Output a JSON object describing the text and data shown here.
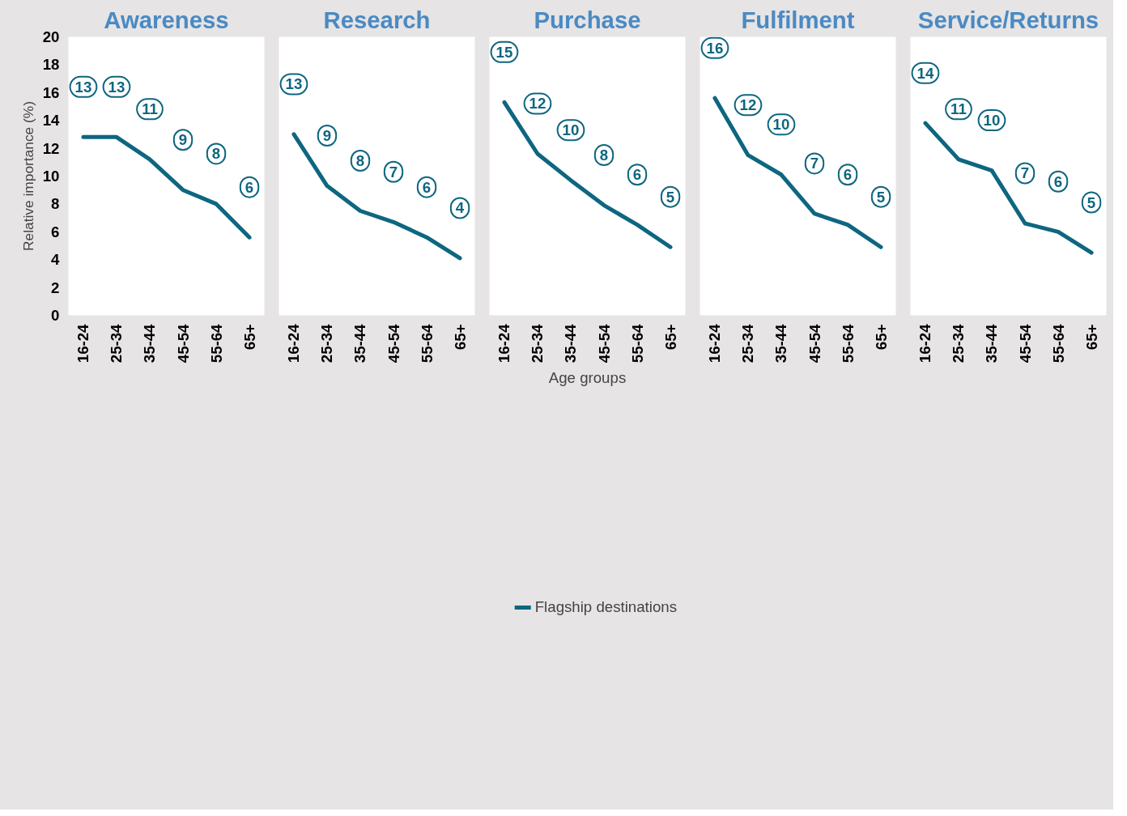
{
  "chart_data": [
    {
      "type": "line",
      "title": "Awareness",
      "ylabel": "Relative importance (%)",
      "categories": [
        "16-24",
        "25-34",
        "35-44",
        "45-54",
        "55-64",
        "65+"
      ],
      "ylim": [
        0,
        20
      ],
      "yticks": [
        0,
        2,
        4,
        6,
        8,
        10,
        12,
        14,
        16,
        18,
        20
      ],
      "series": [
        {
          "color": "#0e6680",
          "values": [
            12.8,
            12.8,
            11.2,
            9.0,
            8.0,
            5.6
          ],
          "value_labels": [
            "13",
            "13",
            "11",
            "9",
            "8",
            "6"
          ]
        }
      ]
    },
    {
      "type": "line",
      "title": "Research",
      "categories": [
        "16-24",
        "25-34",
        "35-44",
        "45-54",
        "55-64",
        "65+"
      ],
      "ylim": [
        0,
        20
      ],
      "yticks": [
        0,
        2,
        4,
        6,
        8,
        10,
        12,
        14,
        16,
        18,
        20
      ],
      "tick_labels": "x",
      "series": [
        {
          "color": "#0e6680",
          "values": [
            13.0,
            9.3,
            7.5,
            6.7,
            5.6,
            4.1
          ],
          "value_labels": [
            "13",
            "9",
            "8",
            "7",
            "6",
            "4"
          ]
        }
      ]
    },
    {
      "type": "line",
      "title": "Purchase",
      "xlabel": "Age groups",
      "legend": "bottom",
      "categories": [
        "16-24",
        "25-34",
        "35-44",
        "45-54",
        "55-64",
        "65+"
      ],
      "ylim": [
        0,
        20
      ],
      "yticks": [
        0,
        2,
        4,
        6,
        8,
        10,
        12,
        14,
        16,
        18,
        20
      ],
      "tick_labels": "x",
      "series": [
        {
          "name": "Flagship destinations",
          "color": "#0e6680",
          "values": [
            15.3,
            11.6,
            9.7,
            7.9,
            6.5,
            4.9
          ],
          "value_labels": [
            "15",
            "12",
            "10",
            "8",
            "6",
            "5"
          ]
        }
      ]
    },
    {
      "type": "line",
      "title": "Fulfilment",
      "categories": [
        "16-24",
        "25-34",
        "35-44",
        "45-54",
        "55-64",
        "65+"
      ],
      "ylim": [
        0,
        20
      ],
      "yticks": [
        0,
        2,
        4,
        6,
        8,
        10,
        12,
        14,
        16,
        18,
        20
      ],
      "tick_labels": "x",
      "series": [
        {
          "color": "#0e6680",
          "values": [
            15.6,
            11.5,
            10.1,
            7.3,
            6.5,
            4.9
          ],
          "value_labels": [
            "16",
            "12",
            "10",
            "7",
            "6",
            "5"
          ]
        }
      ]
    },
    {
      "type": "line",
      "title": "Service/Returns",
      "categories": [
        "16-24",
        "25-34",
        "35-44",
        "45-54",
        "55-64",
        "65+"
      ],
      "ylim": [
        0,
        20
      ],
      "yticks": [
        0,
        2,
        4,
        6,
        8,
        10,
        12,
        14,
        16,
        18,
        20
      ],
      "tick_labels": "x",
      "series": [
        {
          "color": "#0e6680",
          "values": [
            13.8,
            11.2,
            10.4,
            6.6,
            6.0,
            4.5
          ],
          "value_labels": [
            "14",
            "11",
            "10",
            "7",
            "6",
            "5"
          ]
        }
      ]
    }
  ]
}
